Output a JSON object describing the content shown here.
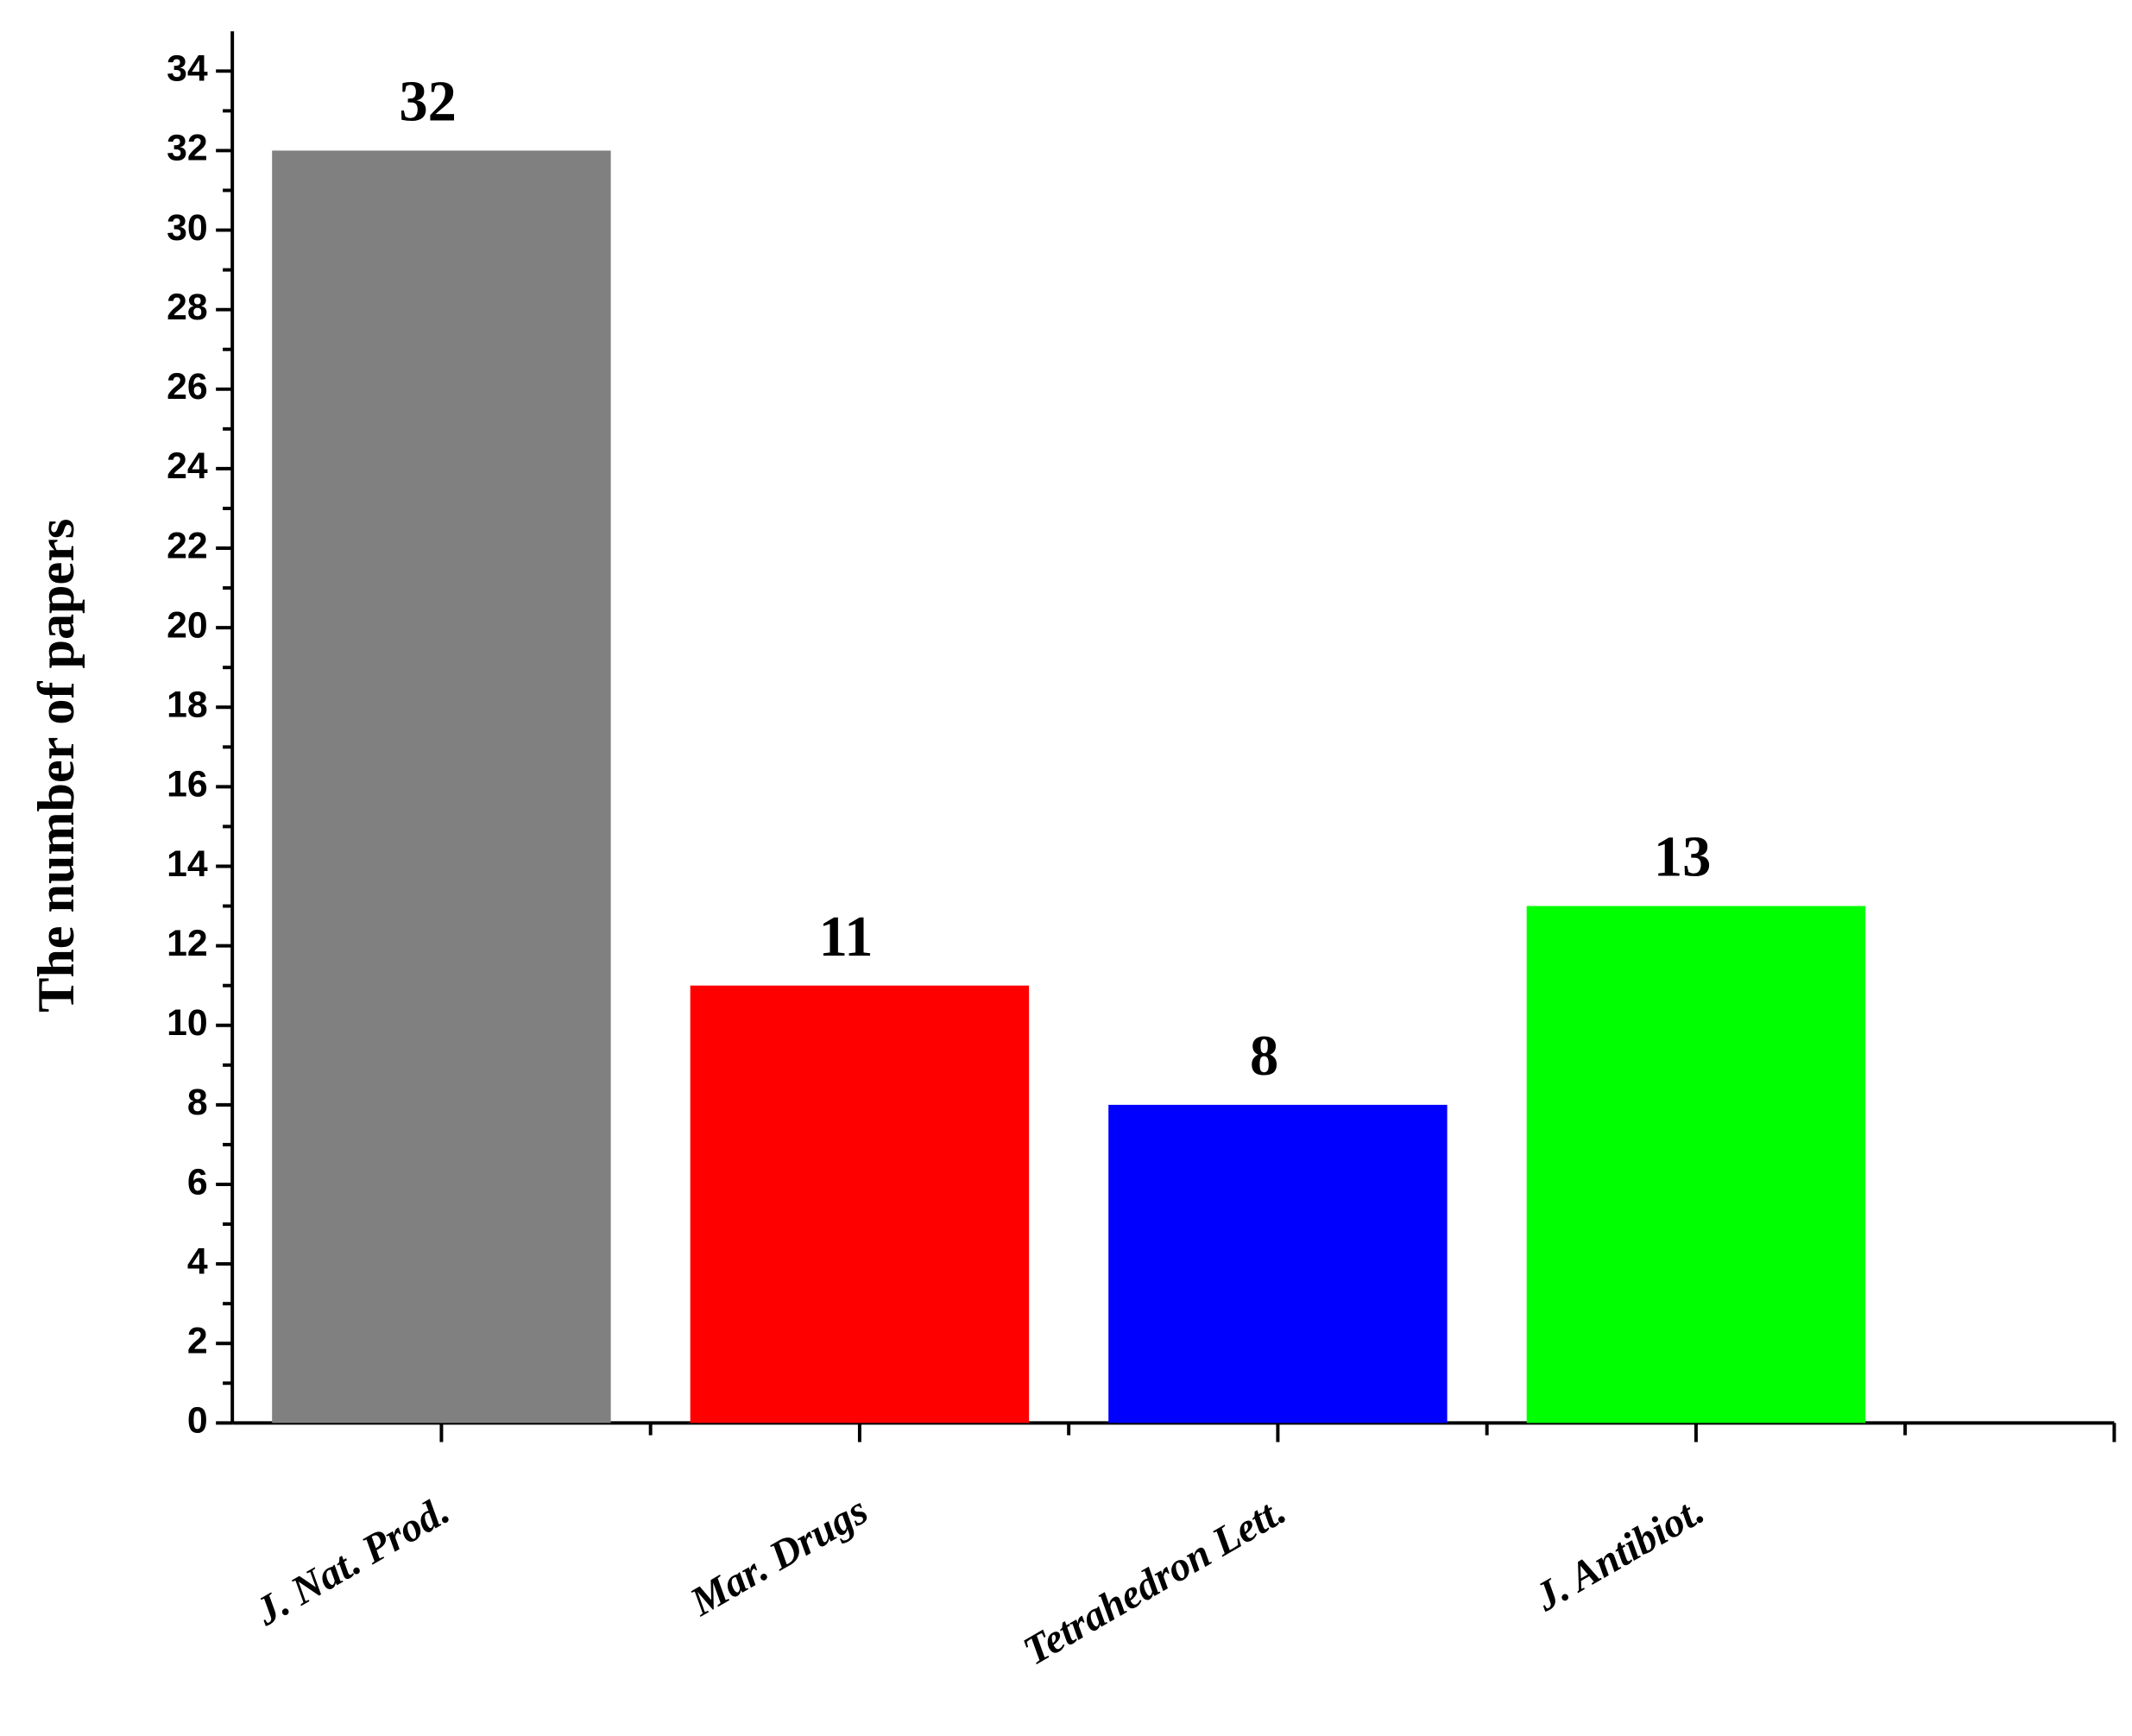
{
  "chart_data": {
    "type": "bar",
    "y_label": "The number of papers",
    "categories": [
      "J. Nat. Prod.",
      "Mar. Drugs",
      "Tetrahedron Lett.",
      "J. Antibiot."
    ],
    "values": [
      32,
      11,
      8,
      13
    ],
    "colors": [
      "#808080",
      "#ff0000",
      "#0000ff",
      "#00ff00"
    ],
    "ylim": [
      0,
      35
    ],
    "yticks": [
      0,
      2,
      4,
      6,
      8,
      10,
      12,
      14,
      16,
      18,
      20,
      22,
      24,
      26,
      28,
      30,
      32,
      34
    ],
    "grid": false
  }
}
